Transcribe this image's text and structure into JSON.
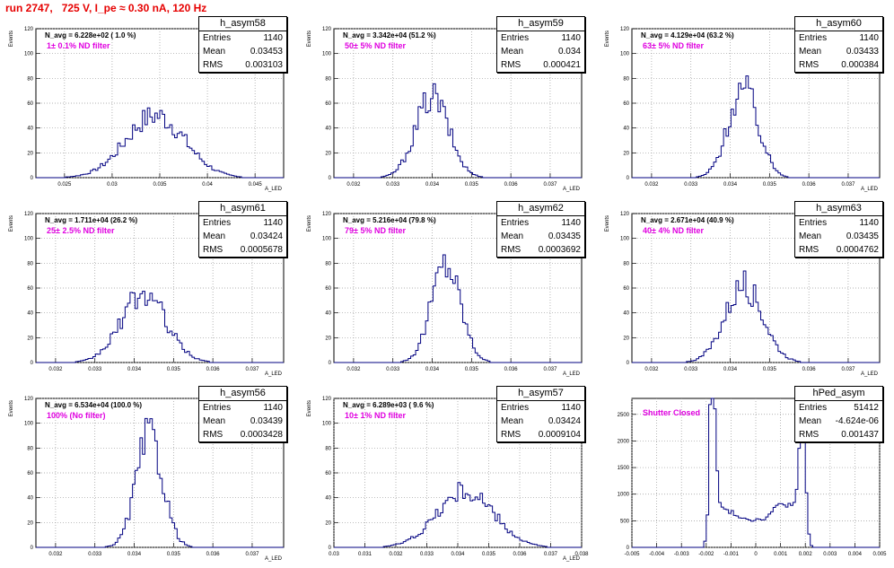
{
  "run_title": "run 2747,   725 V, I_pe ≈ 0.30 nA, 120 Hz",
  "chart_data": [
    {
      "type": "histogram",
      "name": "h_asym58",
      "navg": "N_avg = 6.228e+02 ( 1.0 %)",
      "filter": "1± 0.1% ND filter",
      "stats": {
        "Entries": "1140",
        "Mean": "0.03453",
        "RMS": "0.003103"
      },
      "xlabel": "A_LED",
      "ylabel": "Events",
      "xlim": [
        0.022,
        0.048
      ],
      "ylim": [
        0,
        120
      ],
      "xticks": [
        "0.025",
        "0.03",
        "0.035",
        "0.04",
        "0.045"
      ],
      "yticks": [
        "0",
        "20",
        "40",
        "60",
        "80",
        "100",
        "120"
      ],
      "mean": 0.03453,
      "sigma": 0.0031,
      "peak": 50
    },
    {
      "type": "histogram",
      "name": "h_asym59",
      "navg": "N_avg = 3.342e+04 (51.2 %)",
      "filter": "50± 5% ND filter",
      "stats": {
        "Entries": "1140",
        "Mean": "0.034",
        "RMS": "0.000421"
      },
      "xlabel": "A_LED",
      "ylabel": "Events",
      "xlim": [
        0.0315,
        0.0378
      ],
      "ylim": [
        0,
        120
      ],
      "xticks": [
        "0.032",
        "0.033",
        "0.034",
        "0.035",
        "0.036",
        "0.037"
      ],
      "yticks": [
        "0",
        "20",
        "40",
        "60",
        "80",
        "100",
        "120"
      ],
      "mean": 0.034,
      "sigma": 0.00042,
      "peak": 65
    },
    {
      "type": "histogram",
      "name": "h_asym60",
      "navg": "N_avg = 4.129e+04 (63.2 %)",
      "filter": "63± 5% ND filter",
      "stats": {
        "Entries": "1140",
        "Mean": "0.03433",
        "RMS": "0.000384"
      },
      "xlabel": "A_LED",
      "ylabel": "Events",
      "xlim": [
        0.0315,
        0.0378
      ],
      "ylim": [
        0,
        120
      ],
      "xticks": [
        "0.032",
        "0.033",
        "0.034",
        "0.035",
        "0.036",
        "0.037"
      ],
      "yticks": [
        "0",
        "20",
        "40",
        "60",
        "80",
        "100",
        "120"
      ],
      "mean": 0.03433,
      "sigma": 0.00038,
      "peak": 72
    },
    {
      "type": "histogram",
      "name": "h_asym61",
      "navg": "N_avg = 1.711e+04 (26.2 %)",
      "filter": "25± 2.5% ND filter",
      "stats": {
        "Entries": "1140",
        "Mean": "0.03424",
        "RMS": "0.0005678"
      },
      "xlabel": "A_LED",
      "ylabel": "Events",
      "xlim": [
        0.0315,
        0.0378
      ],
      "ylim": [
        0,
        120
      ],
      "xticks": [
        "0.032",
        "0.033",
        "0.034",
        "0.035",
        "0.036",
        "0.037"
      ],
      "yticks": [
        "0",
        "20",
        "40",
        "60",
        "80",
        "100",
        "120"
      ],
      "mean": 0.03424,
      "sigma": 0.00057,
      "peak": 55
    },
    {
      "type": "histogram",
      "name": "h_asym62",
      "navg": "N_avg = 5.216e+04 (79.8 %)",
      "filter": "79± 5% ND filter",
      "stats": {
        "Entries": "1140",
        "Mean": "0.03435",
        "RMS": "0.0003692"
      },
      "xlabel": "A_LED",
      "ylabel": "Events",
      "xlim": [
        0.0315,
        0.0378
      ],
      "ylim": [
        0,
        120
      ],
      "xticks": [
        "0.032",
        "0.033",
        "0.034",
        "0.035",
        "0.036",
        "0.037"
      ],
      "yticks": [
        "0",
        "20",
        "40",
        "60",
        "80",
        "100",
        "120"
      ],
      "mean": 0.03435,
      "sigma": 0.00037,
      "peak": 80
    },
    {
      "type": "histogram",
      "name": "h_asym63",
      "navg": "N_avg = 2.671e+04 (40.9 %)",
      "filter": "40± 4% ND filter",
      "stats": {
        "Entries": "1140",
        "Mean": "0.03435",
        "RMS": "0.0004762"
      },
      "xlabel": "A_LED",
      "ylabel": "Events",
      "xlim": [
        0.0315,
        0.0378
      ],
      "ylim": [
        0,
        120
      ],
      "xticks": [
        "0.032",
        "0.033",
        "0.034",
        "0.035",
        "0.036",
        "0.037"
      ],
      "yticks": [
        "0",
        "20",
        "40",
        "60",
        "80",
        "100",
        "120"
      ],
      "mean": 0.03435,
      "sigma": 0.00048,
      "peak": 62
    },
    {
      "type": "histogram",
      "name": "h_asym56",
      "navg": "N_avg = 6.534e+04 (100.0 %)",
      "filter": "100% (No filter)",
      "stats": {
        "Entries": "1140",
        "Mean": "0.03439",
        "RMS": "0.0003428"
      },
      "xlabel": "A_LED",
      "ylabel": "Events",
      "xlim": [
        0.0315,
        0.0378
      ],
      "ylim": [
        0,
        120
      ],
      "xticks": [
        "0.032",
        "0.033",
        "0.034",
        "0.035",
        "0.036",
        "0.037"
      ],
      "yticks": [
        "0",
        "20",
        "40",
        "60",
        "80",
        "100",
        "120"
      ],
      "mean": 0.03439,
      "sigma": 0.00034,
      "peak": 90
    },
    {
      "type": "histogram",
      "name": "h_asym57",
      "navg": "N_avg = 6.289e+03 ( 9.6 %)",
      "filter": "10± 1% ND filter",
      "stats": {
        "Entries": "1140",
        "Mean": "0.03424",
        "RMS": "0.0009104"
      },
      "xlabel": "A_LED",
      "ylabel": "Events",
      "xlim": [
        0.03,
        0.038
      ],
      "ylim": [
        0,
        120
      ],
      "xticks": [
        "0.03",
        "0.031",
        "0.032",
        "0.033",
        "0.034",
        "0.035",
        "0.036",
        "0.037",
        "0.038"
      ],
      "yticks": [
        "0",
        "20",
        "40",
        "60",
        "80",
        "100",
        "120"
      ],
      "mean": 0.03424,
      "sigma": 0.00091,
      "peak": 45
    },
    {
      "type": "histogram",
      "name": "hPed_asym",
      "navg": "",
      "filter": "Shutter Closed",
      "stats": {
        "Entries": "51412",
        "Mean": "-4.624e-06",
        "RMS": "0.001437"
      },
      "xlabel": "",
      "ylabel": "",
      "xlim": [
        -0.005,
        0.005
      ],
      "ylim": [
        0,
        2800
      ],
      "xticks": [
        "-0.005",
        "-0.004",
        "-0.003",
        "-0.002",
        "-0.001",
        "0",
        "0.001",
        "0.002",
        "0.003",
        "0.004",
        "0.005"
      ],
      "yticks": [
        "0",
        "500",
        "1000",
        "1500",
        "2000",
        "2500"
      ],
      "shape": "pedestal"
    }
  ]
}
